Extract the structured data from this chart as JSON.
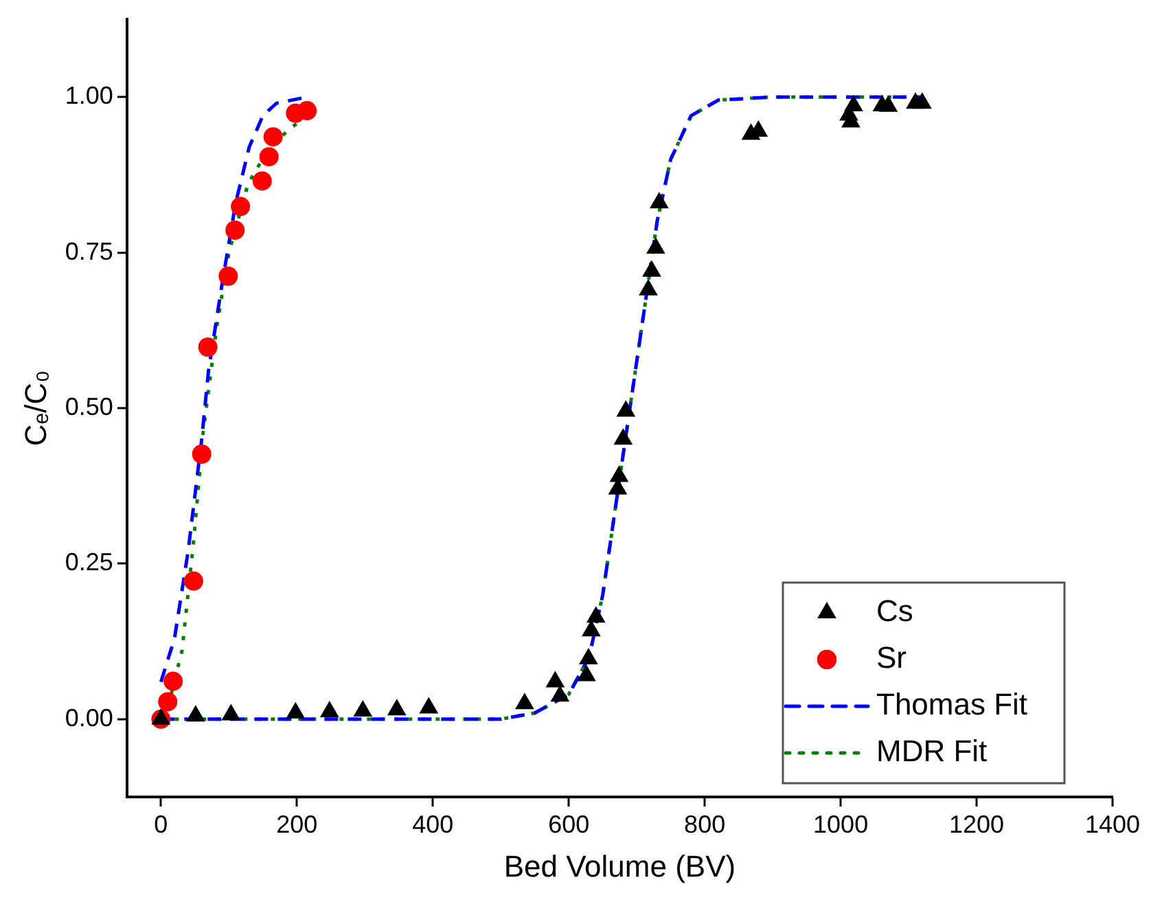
{
  "chart_data": {
    "type": "scatter",
    "xlabel": "Bed Volume (BV)",
    "ylabel": "Cₑ/C₀",
    "xlim": [
      -50,
      1400
    ],
    "ylim": [
      -0.125,
      1.125
    ],
    "xticks": [
      0,
      200,
      400,
      600,
      800,
      1000,
      1200,
      1400
    ],
    "yticks": [
      {
        "value": 0,
        "label": "0.00"
      },
      {
        "value": 0.25,
        "label": "0.25"
      },
      {
        "value": 0.5,
        "label": "0.50"
      },
      {
        "value": 0.75,
        "label": "0.75"
      },
      {
        "value": 1,
        "label": "1.00"
      }
    ],
    "grid": false,
    "legend": "bottom right",
    "series": [
      {
        "name": "Cs",
        "type": "scatter",
        "marker": "triangle",
        "color": "#000000",
        "x": [
          0,
          51,
          103,
          198,
          248,
          297,
          347,
          394,
          535,
          580,
          587,
          626,
          629,
          633,
          640,
          672,
          674,
          680,
          684,
          717,
          722,
          728,
          733,
          868,
          879,
          1012,
          1015,
          1019,
          1061,
          1070,
          1110,
          1120
        ],
        "values": [
          0.0,
          0.005,
          0.007,
          0.01,
          0.012,
          0.013,
          0.015,
          0.018,
          0.025,
          0.06,
          0.037,
          0.07,
          0.097,
          0.142,
          0.164,
          0.37,
          0.39,
          0.45,
          0.495,
          0.69,
          0.72,
          0.757,
          0.83,
          0.94,
          0.945,
          0.971,
          0.96,
          0.986,
          0.986,
          0.985,
          0.99,
          0.99
        ]
      },
      {
        "name": "Sr",
        "type": "scatter",
        "marker": "circle",
        "color": "#ff0000",
        "x": [
          0,
          10,
          18,
          48,
          60,
          69,
          99,
          109,
          117,
          149,
          159,
          165,
          198,
          215
        ],
        "values": [
          0.0,
          0.028,
          0.061,
          0.222,
          0.426,
          0.598,
          0.712,
          0.786,
          0.824,
          0.865,
          0.904,
          0.936,
          0.974,
          0.978
        ]
      },
      {
        "name": "Thomas Fit",
        "type": "line",
        "line_style": "dashed",
        "marker": "none",
        "color": "#0000ff",
        "x": [
          0,
          20,
          40,
          60,
          70,
          90,
          110,
          130,
          150,
          170,
          215
        ],
        "values": [
          0.06,
          0.13,
          0.27,
          0.45,
          0.56,
          0.7,
          0.83,
          0.92,
          0.97,
          0.99,
          1.0
        ]
      },
      {
        "type": "line",
        "line_style": "dashed",
        "marker": "none",
        "color": "#0000ff",
        "x": [
          0,
          100,
          200,
          300,
          400,
          500,
          550,
          600,
          630,
          650,
          670,
          690,
          710,
          730,
          750,
          780,
          820,
          900,
          1000,
          1120
        ],
        "values": [
          0.0,
          0.0,
          0.0,
          0.0,
          0.0,
          0.0,
          0.01,
          0.04,
          0.1,
          0.2,
          0.35,
          0.5,
          0.65,
          0.8,
          0.9,
          0.97,
          0.995,
          1.0,
          1.0,
          1.0
        ]
      },
      {
        "name": "MDR Fit",
        "type": "line",
        "line_style": "dotted",
        "marker": "none",
        "color": "#008000",
        "x": [
          0,
          15,
          31,
          48,
          62,
          82,
          100,
          128,
          160,
          191,
          215
        ],
        "values": [
          0.0,
          0.04,
          0.11,
          0.285,
          0.46,
          0.63,
          0.75,
          0.86,
          0.92,
          0.95,
          0.97
        ]
      },
      {
        "type": "line",
        "line_style": "dotted",
        "marker": "none",
        "color": "#008000",
        "x": [
          0,
          100,
          200,
          300,
          400,
          500,
          550,
          600,
          630,
          650,
          670,
          690,
          710,
          730,
          750,
          780,
          820,
          900,
          1000,
          1120
        ],
        "values": [
          0.0,
          0.0,
          0.0,
          0.0,
          0.0,
          0.0,
          0.01,
          0.04,
          0.1,
          0.2,
          0.35,
          0.5,
          0.65,
          0.8,
          0.9,
          0.97,
          0.995,
          1.0,
          1.0,
          1.0
        ]
      }
    ]
  }
}
